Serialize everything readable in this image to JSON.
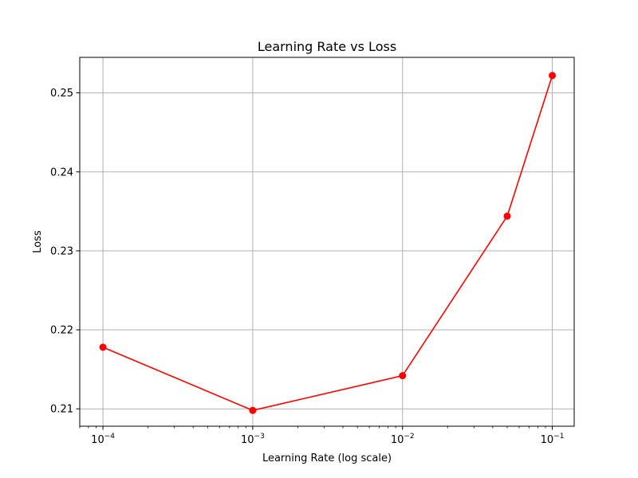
{
  "chart_data": {
    "type": "line",
    "title": "Learning Rate vs Loss",
    "xlabel": "Learning Rate (log scale)",
    "ylabel": "Loss",
    "x_scale": "log",
    "xlim": [
      7e-05,
      0.14
    ],
    "ylim": [
      0.2078,
      0.2545
    ],
    "grid": true,
    "x_ticks": [
      {
        "value": 0.0001,
        "base": "10",
        "exp": "−4"
      },
      {
        "value": 0.001,
        "base": "10",
        "exp": "−3"
      },
      {
        "value": 0.01,
        "base": "10",
        "exp": "−2"
      },
      {
        "value": 0.1,
        "base": "10",
        "exp": "−1"
      }
    ],
    "y_ticks": [
      {
        "value": 0.21,
        "label": "0.21"
      },
      {
        "value": 0.22,
        "label": "0.22"
      },
      {
        "value": 0.23,
        "label": "0.23"
      },
      {
        "value": 0.24,
        "label": "0.24"
      },
      {
        "value": 0.25,
        "label": "0.25"
      }
    ],
    "series": [
      {
        "color": "#ff0000",
        "x": [
          0.0001,
          0.001,
          0.01,
          0.05,
          0.1
        ],
        "y": [
          0.2178,
          0.2098,
          0.2142,
          0.2344,
          0.2522
        ]
      }
    ]
  }
}
